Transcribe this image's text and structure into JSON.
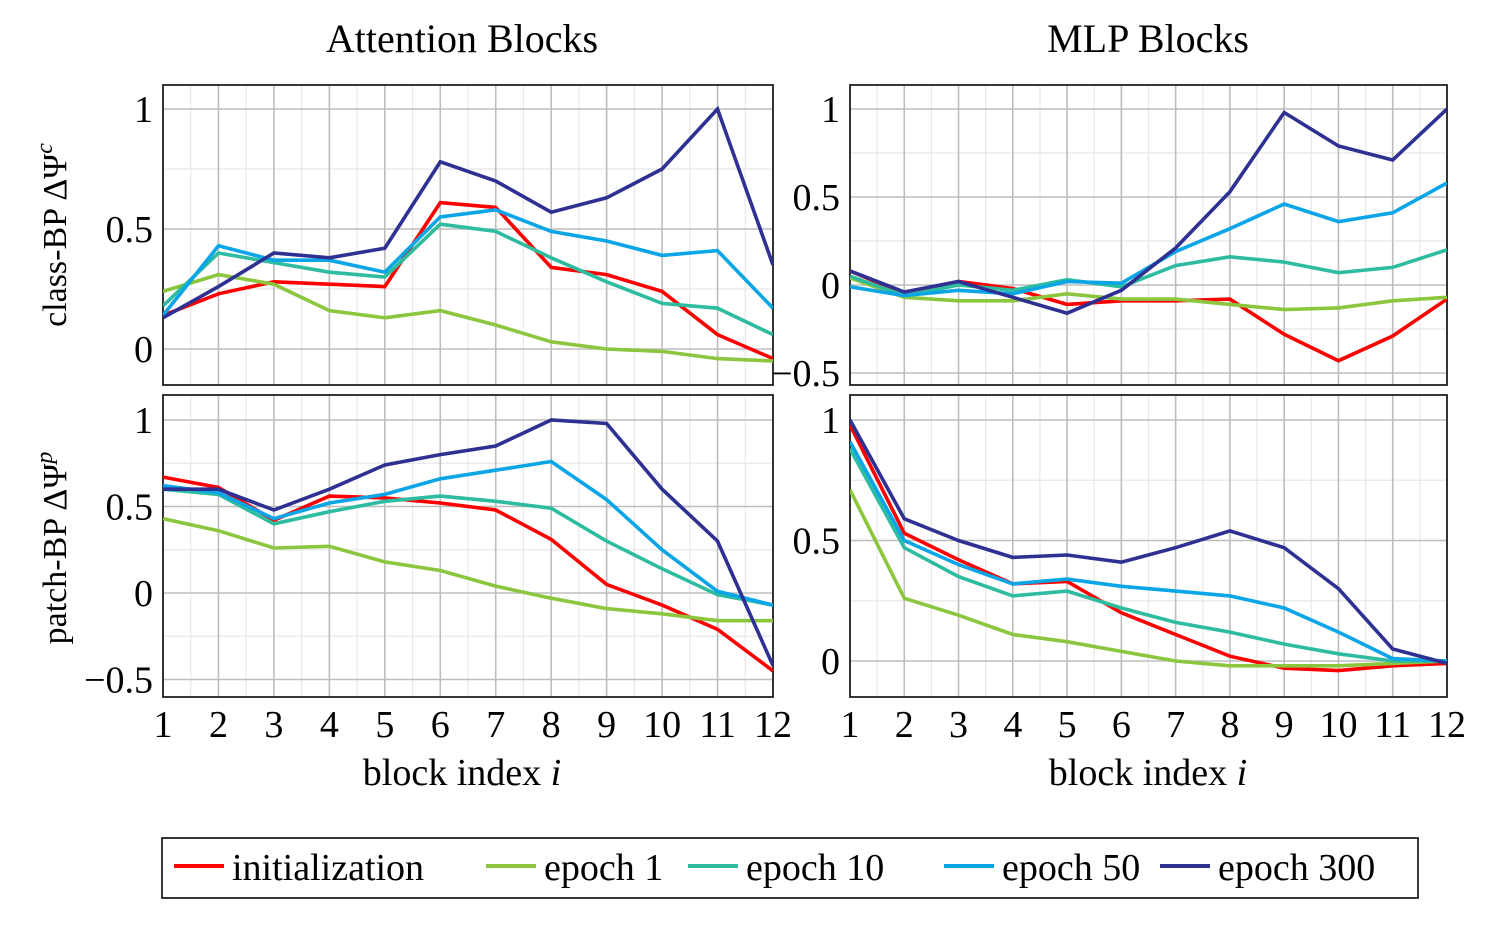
{
  "chart_data": {
    "type": "line",
    "legend": {
      "placement": "bottom-center",
      "entries": [
        {
          "name": "initialization",
          "color": "#ff0000"
        },
        {
          "name": "epoch 1",
          "color": "#8cc63f"
        },
        {
          "name": "epoch 10",
          "color": "#2ebca0"
        },
        {
          "name": "epoch 50",
          "color": "#0aa5e6"
        },
        {
          "name": "epoch 300",
          "color": "#2e3192"
        }
      ]
    },
    "column_titles": [
      "Attention Blocks",
      "MLP Blocks"
    ],
    "row_labels": [
      "class-BP ΔΨᶜ",
      "patch-BP ΔΨᵖ"
    ],
    "xlabel": "block index i",
    "x": [
      1,
      2,
      3,
      4,
      5,
      6,
      7,
      8,
      9,
      10,
      11,
      12
    ],
    "xlim": [
      1,
      12
    ],
    "grid": true,
    "panels": [
      {
        "id": "class-attention",
        "title": "Attention Blocks",
        "ylabel": "class-BP ΔΨᶜ",
        "ylim": [
          -0.15,
          1.1
        ],
        "yticks": [
          0,
          0.5,
          1
        ],
        "ytick_labels": [
          "0",
          "0.5",
          "1"
        ],
        "series": [
          {
            "name": "initialization",
            "values": [
              0.14,
              0.23,
              0.28,
              0.27,
              0.26,
              0.61,
              0.59,
              0.34,
              0.31,
              0.24,
              0.06,
              -0.04
            ]
          },
          {
            "name": "epoch 1",
            "values": [
              0.24,
              0.31,
              0.27,
              0.16,
              0.13,
              0.16,
              0.1,
              0.03,
              0.0,
              -0.01,
              -0.04,
              -0.05
            ]
          },
          {
            "name": "epoch 10",
            "values": [
              0.18,
              0.4,
              0.36,
              0.32,
              0.3,
              0.52,
              0.49,
              0.38,
              0.28,
              0.19,
              0.17,
              0.06
            ]
          },
          {
            "name": "epoch 50",
            "values": [
              0.14,
              0.43,
              0.37,
              0.37,
              0.32,
              0.55,
              0.58,
              0.49,
              0.45,
              0.39,
              0.41,
              0.17
            ]
          },
          {
            "name": "epoch 300",
            "values": [
              0.13,
              0.26,
              0.4,
              0.38,
              0.42,
              0.78,
              0.7,
              0.57,
              0.63,
              0.75,
              1.0,
              0.35
            ]
          }
        ]
      },
      {
        "id": "class-mlp",
        "title": "MLP Blocks",
        "ylabel": "",
        "ylim": [
          -0.55,
          1.1
        ],
        "yticks": [
          -0.5,
          0,
          0.5,
          1
        ],
        "ytick_labels": [
          "−0.5",
          "0",
          "0.5",
          "1"
        ],
        "series": [
          {
            "name": "initialization",
            "values": [
              0.08,
              -0.05,
              0.02,
              -0.02,
              -0.11,
              -0.09,
              -0.09,
              -0.08,
              -0.28,
              -0.43,
              -0.29,
              -0.08
            ]
          },
          {
            "name": "epoch 1",
            "values": [
              0.04,
              -0.07,
              -0.09,
              -0.09,
              -0.05,
              -0.08,
              -0.08,
              -0.11,
              -0.14,
              -0.13,
              -0.09,
              -0.07
            ]
          },
          {
            "name": "epoch 10",
            "values": [
              0.05,
              -0.06,
              0.0,
              -0.03,
              0.03,
              -0.01,
              0.11,
              0.16,
              0.13,
              0.07,
              0.1,
              0.2
            ]
          },
          {
            "name": "epoch 50",
            "values": [
              -0.01,
              -0.06,
              -0.03,
              -0.05,
              0.02,
              0.01,
              0.19,
              0.32,
              0.46,
              0.36,
              0.41,
              0.58
            ]
          },
          {
            "name": "epoch 300",
            "values": [
              0.08,
              -0.04,
              0.02,
              -0.07,
              -0.16,
              -0.03,
              0.21,
              0.53,
              0.98,
              0.79,
              0.71,
              1.0
            ]
          }
        ]
      },
      {
        "id": "patch-attention",
        "title": "",
        "ylabel": "patch-BP ΔΨᵖ",
        "ylim": [
          -0.6,
          1.1
        ],
        "yticks": [
          -0.5,
          0,
          0.5,
          1
        ],
        "ytick_labels": [
          "−0.5",
          "0",
          "0.5",
          "1"
        ],
        "series": [
          {
            "name": "initialization",
            "values": [
              0.67,
              0.61,
              0.42,
              0.56,
              0.55,
              0.52,
              0.48,
              0.31,
              0.05,
              -0.07,
              -0.21,
              -0.45
            ]
          },
          {
            "name": "epoch 1",
            "values": [
              0.43,
              0.36,
              0.26,
              0.27,
              0.18,
              0.13,
              0.04,
              -0.03,
              -0.09,
              -0.12,
              -0.16,
              -0.16
            ]
          },
          {
            "name": "epoch 10",
            "values": [
              0.6,
              0.57,
              0.4,
              0.47,
              0.53,
              0.56,
              0.53,
              0.49,
              0.3,
              0.14,
              -0.01,
              -0.07
            ]
          },
          {
            "name": "epoch 50",
            "values": [
              0.62,
              0.58,
              0.43,
              0.52,
              0.57,
              0.66,
              0.71,
              0.76,
              0.54,
              0.25,
              0.01,
              -0.07
            ]
          },
          {
            "name": "epoch 300",
            "values": [
              0.6,
              0.6,
              0.48,
              0.6,
              0.74,
              0.8,
              0.85,
              1.0,
              0.98,
              0.6,
              0.3,
              -0.42
            ]
          }
        ]
      },
      {
        "id": "patch-mlp",
        "title": "",
        "ylabel": "",
        "ylim": [
          -0.1,
          1.1
        ],
        "yticks": [
          0,
          0.5,
          1
        ],
        "ytick_labels": [
          "0",
          "0.5",
          "1"
        ],
        "series": [
          {
            "name": "initialization",
            "values": [
              0.98,
              0.53,
              0.42,
              0.32,
              0.33,
              0.2,
              0.11,
              0.02,
              -0.03,
              -0.04,
              -0.02,
              -0.01
            ]
          },
          {
            "name": "epoch 1",
            "values": [
              0.71,
              0.26,
              0.19,
              0.11,
              0.08,
              0.04,
              0.0,
              -0.02,
              -0.02,
              -0.02,
              -0.01,
              0.0
            ]
          },
          {
            "name": "epoch 10",
            "values": [
              0.88,
              0.47,
              0.35,
              0.27,
              0.29,
              0.22,
              0.16,
              0.12,
              0.07,
              0.03,
              0.0,
              0.0
            ]
          },
          {
            "name": "epoch 50",
            "values": [
              0.91,
              0.5,
              0.4,
              0.32,
              0.34,
              0.31,
              0.29,
              0.27,
              0.22,
              0.12,
              0.01,
              0.0
            ]
          },
          {
            "name": "epoch 300",
            "values": [
              1.0,
              0.59,
              0.5,
              0.43,
              0.44,
              0.41,
              0.47,
              0.54,
              0.47,
              0.3,
              0.05,
              -0.01
            ]
          }
        ]
      }
    ]
  }
}
